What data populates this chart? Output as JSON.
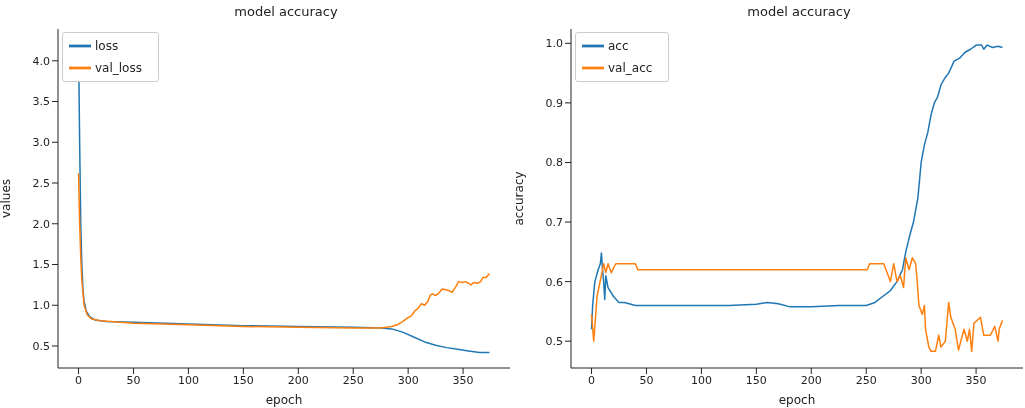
{
  "chart_data": [
    {
      "type": "line",
      "title": "model accuracy",
      "xlabel": "epoch",
      "ylabel": "values",
      "legend": "top left",
      "xlim": [
        -18.7,
        392.7
      ],
      "xticks": [
        0,
        50,
        100,
        150,
        200,
        250,
        300,
        350
      ],
      "ylim": [
        0.23,
        4.39
      ],
      "yticks": [
        {
          "value": 0.5,
          "label": "0.5"
        },
        {
          "value": 1,
          "label": "1.0"
        },
        {
          "value": 1.5,
          "label": "1.5"
        },
        {
          "value": 2,
          "label": "2.0"
        },
        {
          "value": 2.5,
          "label": "2.5"
        },
        {
          "value": 3,
          "label": "3.0"
        },
        {
          "value": 3.5,
          "label": "3.5"
        },
        {
          "value": 4,
          "label": "4.0"
        }
      ],
      "series": [
        {
          "name": "loss",
          "color": "#1f77b4",
          "x": [
            0,
            1,
            2,
            3,
            4,
            5,
            7,
            10,
            15,
            25,
            50,
            100,
            150,
            200,
            250,
            275,
            285,
            295,
            305,
            315,
            325,
            335,
            345,
            355,
            365,
            374
          ],
          "values": [
            4.2,
            3.0,
            2.0,
            1.5,
            1.2,
            1.05,
            0.93,
            0.86,
            0.82,
            0.8,
            0.79,
            0.77,
            0.75,
            0.74,
            0.73,
            0.72,
            0.71,
            0.67,
            0.61,
            0.55,
            0.51,
            0.48,
            0.46,
            0.44,
            0.42,
            0.42
          ]
        },
        {
          "name": "val_loss",
          "color": "#ff7f0e",
          "x": [
            0,
            1,
            2,
            3,
            5,
            8,
            12,
            20,
            50,
            100,
            150,
            200,
            250,
            275,
            280,
            285,
            290,
            295,
            300,
            303,
            306,
            309,
            312,
            315,
            318,
            320,
            322,
            325,
            328,
            331,
            334,
            337,
            340,
            343,
            346,
            349,
            352,
            355,
            357,
            360,
            363,
            366,
            368,
            371,
            374
          ],
          "values": [
            2.62,
            2.0,
            1.6,
            1.3,
            1.0,
            0.88,
            0.83,
            0.81,
            0.78,
            0.76,
            0.74,
            0.73,
            0.72,
            0.72,
            0.73,
            0.74,
            0.76,
            0.8,
            0.85,
            0.87,
            0.93,
            0.96,
            1.02,
            1.0,
            1.05,
            1.12,
            1.14,
            1.12,
            1.15,
            1.2,
            1.19,
            1.18,
            1.16,
            1.22,
            1.29,
            1.28,
            1.29,
            1.27,
            1.25,
            1.28,
            1.27,
            1.29,
            1.34,
            1.34,
            1.39
          ]
        }
      ]
    },
    {
      "type": "line",
      "title": "model accuracy",
      "xlabel": "epoch",
      "ylabel": "accuracy",
      "legend": "top left",
      "xlim": [
        -18.7,
        392.7
      ],
      "xticks": [
        0,
        50,
        100,
        150,
        200,
        250,
        300,
        350
      ],
      "ylim": [
        0.455,
        1.024
      ],
      "yticks": [
        0.5,
        0.6,
        0.7,
        0.8,
        0.9,
        {
          "value": 1,
          "label": "1.0"
        }
      ],
      "series": [
        {
          "name": "acc",
          "color": "#1f77b4",
          "x": [
            0,
            1,
            3,
            6,
            8,
            9,
            10,
            11,
            12,
            13,
            15,
            20,
            25,
            30,
            40,
            50,
            75,
            100,
            125,
            150,
            160,
            170,
            180,
            200,
            225,
            250,
            258,
            265,
            272,
            278,
            283,
            286,
            290,
            293,
            297,
            300,
            303,
            306,
            309,
            312,
            315,
            318,
            321,
            325,
            330,
            335,
            340,
            345,
            350,
            355,
            357,
            360,
            365,
            370,
            374
          ],
          "values": [
            0.52,
            0.56,
            0.6,
            0.62,
            0.63,
            0.648,
            0.62,
            0.6,
            0.57,
            0.61,
            0.59,
            0.575,
            0.565,
            0.565,
            0.56,
            0.56,
            0.56,
            0.56,
            0.56,
            0.562,
            0.565,
            0.563,
            0.558,
            0.558,
            0.56,
            0.56,
            0.565,
            0.575,
            0.585,
            0.6,
            0.62,
            0.65,
            0.68,
            0.7,
            0.74,
            0.8,
            0.83,
            0.85,
            0.88,
            0.9,
            0.91,
            0.93,
            0.94,
            0.95,
            0.97,
            0.975,
            0.985,
            0.99,
            0.997,
            0.997,
            0.99,
            0.997,
            0.993,
            0.995,
            0.993
          ]
        },
        {
          "name": "val_acc",
          "color": "#ff7f0e",
          "x": [
            0,
            2,
            5,
            10,
            11,
            13,
            15,
            18,
            22,
            40,
            42,
            251,
            253,
            266,
            272,
            275,
            278,
            281,
            284,
            286,
            289,
            292,
            295,
            296,
            298,
            301,
            303,
            304,
            307,
            309,
            313,
            316,
            318,
            322,
            325,
            327,
            331,
            334,
            339,
            342,
            344,
            346,
            348,
            354,
            357,
            363,
            367,
            370,
            371,
            374
          ],
          "values": [
            0.545,
            0.5,
            0.575,
            0.62,
            0.63,
            0.615,
            0.63,
            0.615,
            0.63,
            0.63,
            0.62,
            0.62,
            0.63,
            0.63,
            0.6,
            0.63,
            0.6,
            0.61,
            0.59,
            0.64,
            0.62,
            0.64,
            0.63,
            0.61,
            0.56,
            0.545,
            0.56,
            0.52,
            0.49,
            0.483,
            0.483,
            0.51,
            0.49,
            0.5,
            0.565,
            0.54,
            0.52,
            0.485,
            0.52,
            0.5,
            0.52,
            0.483,
            0.53,
            0.54,
            0.51,
            0.51,
            0.525,
            0.5,
            0.52,
            0.535
          ]
        }
      ]
    }
  ]
}
